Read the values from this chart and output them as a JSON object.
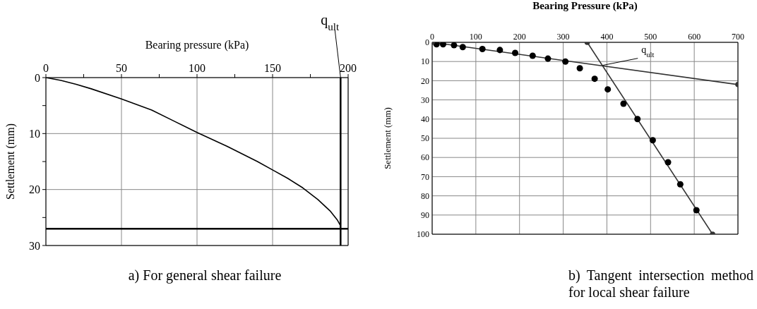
{
  "chart_data": [
    {
      "type": "line",
      "xlabel": "Bearing pressure (kPa)",
      "ylabel": "Settlement (mm)",
      "xlim": [
        0,
        200
      ],
      "ylim": [
        30,
        0
      ],
      "xticks": [
        0,
        {
          "value": 25,
          "label": null
        },
        50,
        {
          "value": 75,
          "label": null
        },
        100,
        {
          "value": 125,
          "label": null
        },
        150,
        {
          "value": 175,
          "label": null
        },
        200
      ],
      "yticks": [
        0,
        {
          "value": 5,
          "label": null
        },
        10,
        {
          "value": 15,
          "label": null
        },
        20,
        {
          "value": 25,
          "label": null
        },
        30
      ],
      "grid": true,
      "marker": "none",
      "line_style": "solid",
      "series": [
        {
          "color": "#000000",
          "x": [
            0,
            10,
            20,
            30,
            50,
            70,
            85,
            100,
            120,
            140,
            150,
            160,
            170,
            180,
            188,
            193,
            195
          ],
          "values": [
            0,
            0.5,
            1.2,
            2,
            3.8,
            5.8,
            7.8,
            9.8,
            12.3,
            15,
            16.5,
            18,
            19.7,
            21.8,
            23.8,
            25.5,
            26.5
          ]
        }
      ],
      "ref_lines": [
        {
          "axis": "x",
          "value": 195,
          "color": "#000000"
        },
        {
          "axis": "y",
          "value": 27,
          "color": "#000000"
        }
      ],
      "annotations": [
        {
          "text": "q$_{ult}$",
          "x": 195,
          "y": 0
        },
        "a) For general shear failure"
      ]
    },
    {
      "type": "scatter",
      "xlabel": "Bearing Pressure (kPa)",
      "ylabel": "Settlement (mm)",
      "xlim": [
        0,
        700
      ],
      "ylim": [
        100,
        0
      ],
      "xticks": [
        0,
        100,
        200,
        300,
        400,
        500,
        600,
        700
      ],
      "yticks": [
        0,
        10,
        20,
        30,
        40,
        50,
        60,
        70,
        80,
        90,
        100
      ],
      "grid": true,
      "marker": "circle",
      "series": [
        {
          "color": "#000000",
          "x": [
            10,
            25,
            50,
            70,
            115,
            155,
            190,
            230,
            265,
            305,
            338,
            372,
            402,
            438,
            470,
            505,
            540,
            568,
            605
          ],
          "values": [
            1,
            1,
            1.5,
            2.5,
            3.5,
            4,
            5.5,
            7,
            8.5,
            10,
            13.5,
            19,
            24.5,
            32,
            40,
            51,
            62.5,
            74,
            87.5
          ]
        },
        {
          "type": "line",
          "color": "#333333",
          "x": [
            0,
            700
          ],
          "values": [
            0,
            22
          ]
        },
        {
          "type": "line",
          "color": "#333333",
          "x": [
            355,
            642
          ],
          "values": [
            0,
            100
          ]
        }
      ],
      "annotations": [
        {
          "text": "q$_{ult}$",
          "x": 390,
          "y": 12
        },
        "b) Tangent intersection method for local shear failure"
      ]
    }
  ]
}
